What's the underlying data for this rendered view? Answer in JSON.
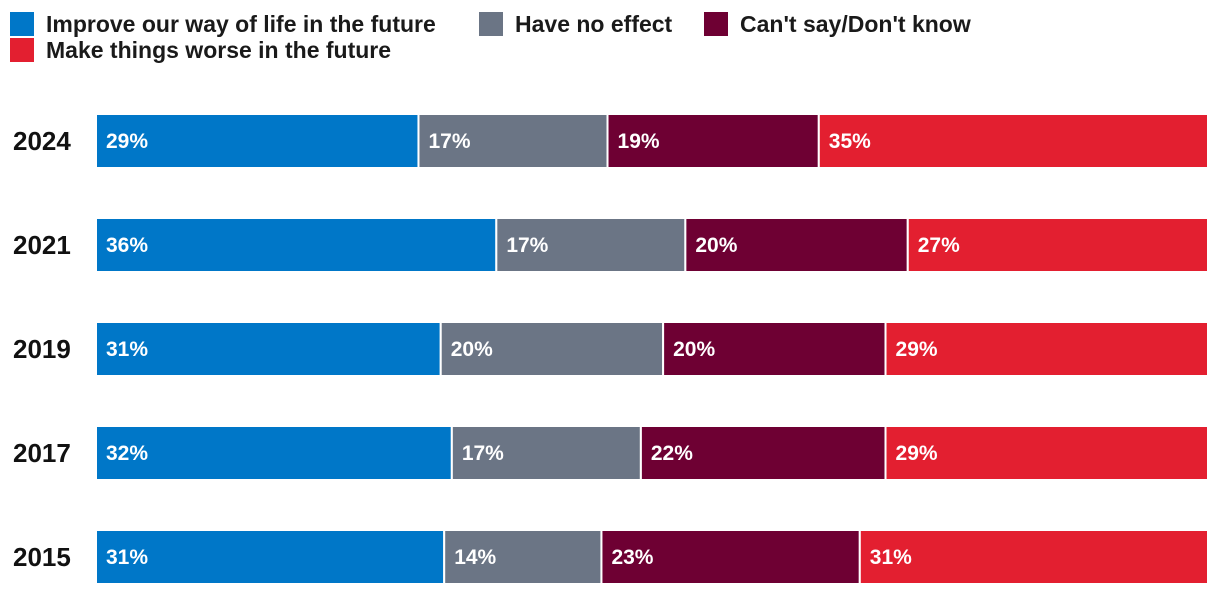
{
  "chart_data": {
    "type": "bar",
    "orientation": "horizontal",
    "stacked": true,
    "legend_position": "top-left",
    "categories": [
      "2024",
      "2021",
      "2019",
      "2017",
      "2015"
    ],
    "series": [
      {
        "name": "Improve our way of life in the future",
        "color": "#0077c8",
        "values": [
          29,
          36,
          31,
          32,
          31
        ]
      },
      {
        "name": "Have no effect",
        "color": "#6b7585",
        "values": [
          17,
          17,
          20,
          17,
          14
        ]
      },
      {
        "name": "Can't say/Don't know",
        "color": "#6e0033",
        "values": [
          19,
          20,
          20,
          22,
          23
        ]
      },
      {
        "name": "Make things worse in the future",
        "color": "#e31f30",
        "values": [
          35,
          27,
          29,
          29,
          31
        ]
      }
    ],
    "value_suffix": "%",
    "xlim": [
      0,
      100
    ]
  }
}
